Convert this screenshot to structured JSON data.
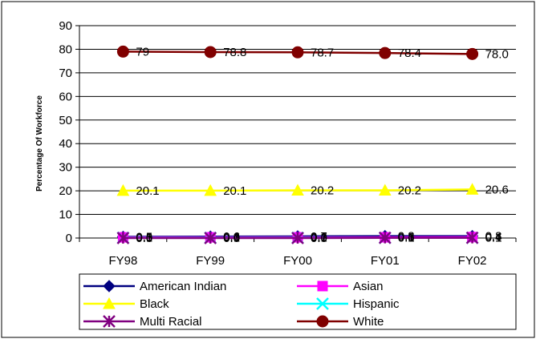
{
  "chart_data": {
    "type": "line",
    "title": "",
    "xlabel": "",
    "ylabel": "Percentage Of Workforce",
    "ylim": [
      0,
      90
    ],
    "yticks": [
      0,
      10,
      20,
      30,
      40,
      50,
      60,
      70,
      80,
      90
    ],
    "categories": [
      "FY98",
      "FY99",
      "FY00",
      "FY01",
      "FY02"
    ],
    "grid": "horizontal",
    "legend": "bottom",
    "series": [
      {
        "name": "American Indian",
        "color": "#000080",
        "marker": "diamond",
        "values": [
          0.5,
          0.6,
          0.7,
          0.8,
          0.8
        ],
        "labels": [
          "0.5",
          "0.6",
          "0.7",
          "0.8",
          "0.8"
        ]
      },
      {
        "name": "Asian",
        "color": "#FF00FF",
        "marker": "square",
        "values": [
          0.3,
          0.3,
          0.3,
          0.3,
          0.4
        ],
        "labels": [
          "0.3",
          "0.3",
          "0.3",
          "0.3",
          "0.4"
        ]
      },
      {
        "name": "Black",
        "color": "#FFFF00",
        "marker": "triangle",
        "values": [
          20.1,
          20.1,
          20.2,
          20.2,
          20.6
        ],
        "labels": [
          "20.1",
          "20.1",
          "20.2",
          "20.2",
          "20.6"
        ]
      },
      {
        "name": "Hispanic",
        "color": "#00FFFF",
        "marker": "x",
        "values": [
          0.1,
          0.1,
          0.1,
          0.1,
          0.1
        ],
        "labels": [
          "0.1",
          "0.1",
          "0.1",
          "0.1",
          "0.1"
        ]
      },
      {
        "name": "Multi Racial",
        "color": "#800080",
        "marker": "star",
        "values": [
          0.0,
          0.0,
          0.0,
          0.1,
          0.1
        ],
        "labels": [
          "0.0",
          "0.0",
          "0.0",
          "0.1",
          "0.1"
        ]
      },
      {
        "name": "White",
        "color": "#800000",
        "marker": "circle",
        "values": [
          79,
          78.8,
          78.7,
          78.4,
          78.0
        ],
        "labels": [
          "79",
          "78.8",
          "78.7",
          "78.4",
          "78.0"
        ]
      }
    ]
  }
}
